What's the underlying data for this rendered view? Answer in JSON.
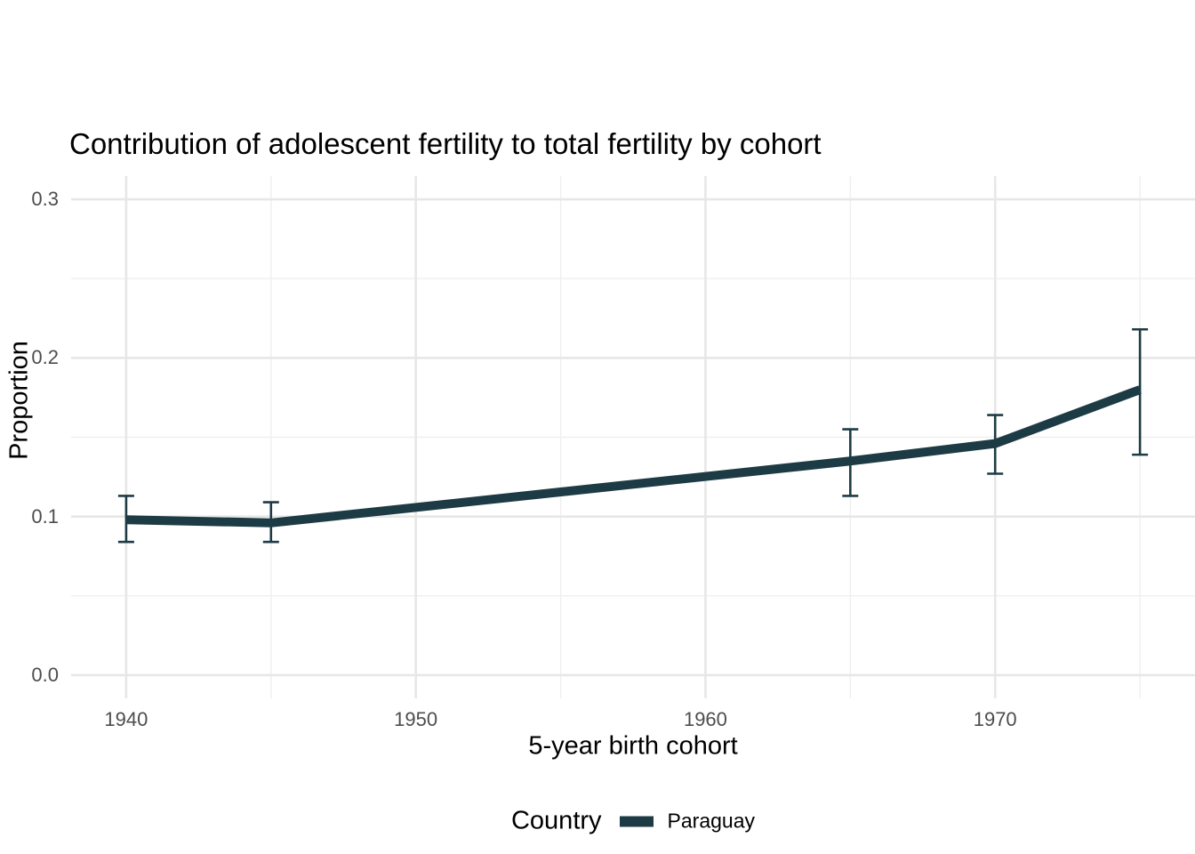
{
  "chart_data": {
    "type": "line",
    "title": "Contribution of adolescent fertility to total fertility by cohort",
    "xlabel": "5-year birth cohort",
    "ylabel": "Proportion",
    "legend_title": "Country",
    "legend_position": "bottom",
    "grid": true,
    "xlim": [
      1938.1,
      1976.9
    ],
    "ylim": [
      -0.0146,
      0.3146
    ],
    "x_ticks": [
      "1940",
      "1950",
      "1960",
      "1970"
    ],
    "x_tick_values": [
      1940,
      1950,
      1960,
      1970
    ],
    "x_minor_tick_values": [
      1945,
      1955,
      1965,
      1975
    ],
    "y_ticks": [
      "0.0",
      "0.1",
      "0.2",
      "0.3"
    ],
    "y_tick_values": [
      0.0,
      0.1,
      0.2,
      0.3
    ],
    "y_minor_tick_values": [
      0.05,
      0.15,
      0.25
    ],
    "series": [
      {
        "name": "Paraguay",
        "color": "#1d3b45",
        "x": [
          1940,
          1945,
          1965,
          1970,
          1975
        ],
        "y": [
          0.098,
          0.096,
          0.135,
          0.146,
          0.18
        ],
        "ci_low": [
          0.084,
          0.084,
          0.113,
          0.127,
          0.139
        ],
        "ci_high": [
          0.113,
          0.109,
          0.155,
          0.164,
          0.218
        ]
      }
    ],
    "colors": {
      "series": "#1d3b45",
      "grid_major": "#e7e7e7",
      "grid_minor": "#efefef",
      "tick_text": "#4d4d4d",
      "text": "#000000",
      "background": "#ffffff"
    }
  }
}
